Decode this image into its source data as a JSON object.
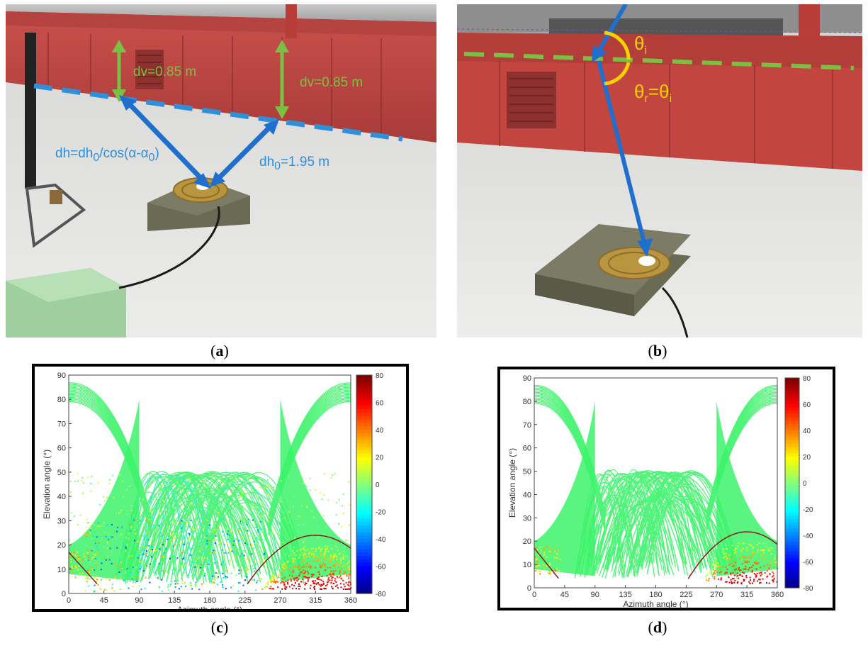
{
  "figure": {
    "captions": {
      "a": "a",
      "b": "b",
      "c": "c",
      "d": "d"
    },
    "panel_a": {
      "dv_left": "dv=0.85 m",
      "dv_right": "dv=0.85 m",
      "dh_formula": "dh=dh",
      "dh_formula_sub0": "0",
      "dh_formula_rest": "/cos(α-α",
      "dh_formula_sub1": "0",
      "dh_formula_end": ")",
      "dh0": "dh",
      "dh0_sub": "0",
      "dh0_value": "=1.95 m",
      "colors": {
        "dv": "#7ac143",
        "dh": "#2f8fd8",
        "arrow": "#1f6fcf"
      }
    },
    "panel_b": {
      "theta_i": "θ",
      "theta_i_sub": "i",
      "theta_r": "θ",
      "theta_r_sub": "r",
      "equals": "=θ",
      "equals_sub": "i",
      "colors": {
        "theta": "#f5d100",
        "line": "#7ac143"
      }
    }
  },
  "chart_data": [
    {
      "type": "scatter",
      "panel": "c",
      "xlabel": "Azimuth angle (°)",
      "ylabel": "Elevation angle (°)",
      "xlim": [
        0,
        360
      ],
      "ylim": [
        0,
        90
      ],
      "xticks": [
        "0",
        "45",
        "90",
        "135",
        "180",
        "225",
        "270",
        "315",
        "360"
      ],
      "yticks": [
        "0",
        "10",
        "20",
        "30",
        "40",
        "50",
        "60",
        "70",
        "80",
        "90"
      ],
      "colorbar": {
        "min": -80,
        "max": 80,
        "ticks": [
          "80",
          "60",
          "40",
          "20",
          "0",
          "-20",
          "-40",
          "-60",
          "-80"
        ]
      },
      "curve_peak": {
        "azimuth": 315,
        "elevation": 24
      }
    },
    {
      "type": "scatter",
      "panel": "d",
      "xlabel": "Azimuth angle (°)",
      "ylabel": "Elevation angle (°)",
      "xlim": [
        0,
        360
      ],
      "ylim": [
        0,
        90
      ],
      "xticks": [
        "0",
        "45",
        "90",
        "135",
        "180",
        "225",
        "270",
        "315",
        "360"
      ],
      "yticks": [
        "0",
        "10",
        "20",
        "30",
        "40",
        "50",
        "60",
        "70",
        "80",
        "90"
      ],
      "colorbar": {
        "min": -80,
        "max": 80,
        "ticks": [
          "80",
          "60",
          "40",
          "20",
          "0",
          "-20",
          "-40",
          "-60",
          "-80"
        ]
      },
      "curve_peak": {
        "azimuth": 315,
        "elevation": 24
      }
    }
  ]
}
